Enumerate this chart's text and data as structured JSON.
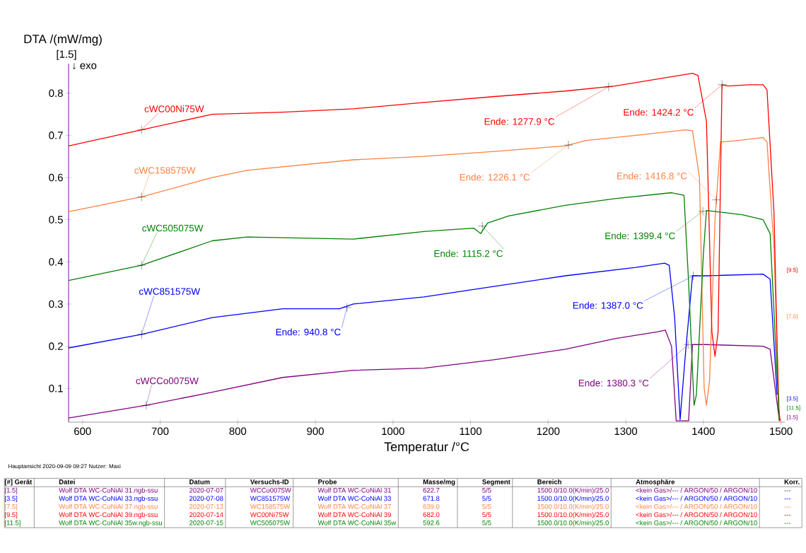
{
  "chart_data": {
    "type": "line",
    "xlabel": "Temperatur /°C",
    "ylabel": "DTA /(mW/mg)",
    "xlim": [
      582,
      1505
    ],
    "ylim": [
      0.02,
      0.87
    ],
    "xticks": [
      600,
      700,
      800,
      900,
      1000,
      1100,
      1200,
      1300,
      1400,
      1500
    ],
    "yticks": [
      0.1,
      0.2,
      0.3,
      0.4,
      0.5,
      0.6,
      0.7,
      0.8
    ],
    "series": [
      {
        "name": "cWCCo0075W",
        "color": "#800080",
        "x": [
          582,
          682,
          767,
          858,
          949,
          1040,
          1131,
          1222,
          1286,
          1340,
          1351,
          1359,
          1365,
          1381,
          1386,
          1404,
          1477,
          1486,
          1498
        ],
        "values": [
          0.03,
          0.06,
          0.091,
          0.126,
          0.143,
          0.148,
          0.168,
          0.193,
          0.218,
          0.234,
          0.238,
          0.2,
          0.023,
          0.023,
          0.204,
          0.204,
          0.2,
          0.193,
          0.023
        ]
      },
      {
        "name": "cWC851575W",
        "color": "#0000ff",
        "x": [
          582,
          676,
          767,
          858,
          931,
          949,
          1040,
          1131,
          1222,
          1313,
          1350,
          1356,
          1363,
          1370,
          1377,
          1386,
          1404,
          1477,
          1486,
          1495
        ],
        "values": [
          0.196,
          0.228,
          0.268,
          0.289,
          0.289,
          0.3,
          0.317,
          0.342,
          0.367,
          0.387,
          0.397,
          0.392,
          0.268,
          0.026,
          0.184,
          0.367,
          0.367,
          0.371,
          0.359,
          0.085
        ]
      },
      {
        "name": "cWC158575W",
        "color": "#ff8040",
        "x": [
          582,
          676,
          767,
          812,
          949,
          1040,
          1131,
          1222,
          1249,
          1313,
          1377,
          1386,
          1395,
          1401,
          1404,
          1408,
          1415,
          1422,
          1441,
          1477,
          1482,
          1491,
          1498
        ],
        "values": [
          0.519,
          0.554,
          0.6,
          0.617,
          0.642,
          0.65,
          0.662,
          0.675,
          0.688,
          0.7,
          0.713,
          0.711,
          0.6,
          0.101,
          0.06,
          0.118,
          0.5,
          0.684,
          0.687,
          0.695,
          0.684,
          0.434,
          0.023
        ]
      },
      {
        "name": "cWC00Ni75W",
        "color": "#ff0000",
        "x": [
          582,
          676,
          767,
          858,
          949,
          1040,
          1131,
          1222,
          1286,
          1386,
          1393,
          1404,
          1411,
          1415,
          1419,
          1424,
          1432,
          1459,
          1477,
          1482,
          1491,
          1497,
          1499
        ],
        "values": [
          0.675,
          0.713,
          0.75,
          0.755,
          0.763,
          0.778,
          0.792,
          0.805,
          0.817,
          0.847,
          0.842,
          0.733,
          0.234,
          0.176,
          0.234,
          0.82,
          0.817,
          0.82,
          0.82,
          0.808,
          0.517,
          0.05,
          0.023
        ]
      },
      {
        "name": "cWC505075W",
        "color": "#008000",
        "x": [
          582,
          676,
          767,
          812,
          949,
          1040,
          1104,
          1113,
          1122,
          1149,
          1222,
          1286,
          1359,
          1375,
          1381,
          1388,
          1391,
          1400,
          1404,
          1450,
          1477,
          1486,
          1498
        ],
        "values": [
          0.356,
          0.392,
          0.45,
          0.459,
          0.454,
          0.472,
          0.48,
          0.467,
          0.492,
          0.509,
          0.534,
          0.55,
          0.564,
          0.558,
          0.351,
          0.06,
          0.085,
          0.418,
          0.522,
          0.512,
          0.5,
          0.467,
          0.023
        ]
      }
    ],
    "annotations": [
      {
        "text": "Ende: 1277.9 °C",
        "x": 1277.9,
        "y": 0.815
      },
      {
        "text": "Ende: 1424.2 °C",
        "x": 1424.2,
        "y": 0.82
      },
      {
        "text": "Ende: 1226.1 °C",
        "x": 1226.1,
        "y": 0.677
      },
      {
        "text": "Ende: 1416.8 °C",
        "x": 1416.8,
        "y": 0.547
      },
      {
        "text": "Ende: 1115.2 °C",
        "x": 1115.2,
        "y": 0.485
      },
      {
        "text": "Ende: 1399.4 °C",
        "x": 1399.4,
        "y": 0.52
      },
      {
        "text": "Ende: 940.8 °C",
        "x": 940.8,
        "y": 0.292
      },
      {
        "text": "Ende: 1387.0 °C",
        "x": 1387.0,
        "y": 0.367
      },
      {
        "text": "Ende: 1380.3 °C",
        "x": 1380.3,
        "y": 0.204
      },
      "[1.5]",
      "↓ exo",
      "[9.5]",
      "[7.5]",
      "[3.5]",
      "[11.5]",
      "[1.5]",
      "Hauptansicht   2020-09-09 09:27   Nutzer: Maxi",
      "[#] Gerät",
      "Datei",
      "Datum",
      "Versuchs-ID",
      "Probe",
      "Masse/mg",
      "Segment",
      "Bereich",
      "Atmosphäre",
      "Korr.",
      "[1.5]",
      "Wolf DTA WC-CoNiAl 31.ngb-ssu",
      "2020-07-07",
      "WCCo0075W",
      "Wolf DTA WC-CoNiAl 31",
      "622.7",
      "5/5",
      "1500.0/10.0(K/min)/25.0",
      "<kein Gas>/--- / ARGON/50 / ARGON/10",
      "---",
      "[3.5]",
      "Wolf DTA WC-CoNiAl 33.ngb-ssu",
      "2020-07-08",
      "WC851575W",
      "Wolf DTA WC-CoNiAl 33",
      "671.8",
      "5/5",
      "1500.0/10.0(K/min)/25.0",
      "<kein Gas>/--- / ARGON/50 / ARGON/10",
      "---",
      "[7.5]",
      "Wolf DTA WC-CoNiAl 37.ngb-ssu",
      "2020-07-13",
      "WC158575W",
      "Wolf DTA WC-CoNiAl 37",
      "639.0",
      "5/5",
      "1500.0/10.0(K/min)/25.0",
      "<kein Gas>/--- / ARGON/50 / ARGON/10",
      "---",
      "[9.5]",
      "Wolf DTA WC-CoNiAl 39.ngb-ssu",
      "2020-07-14",
      "WC00Ni75W",
      "Wolf DTA WC-CoNiAl 39",
      "682.0",
      "5/5",
      "1500.0/10.0(K/min)/25.0",
      "<kein Gas>/--- / ARGON/50 / ARGON/10",
      "---",
      "[11.5]",
      "Wolf DTA WC-CoNiAl 35w.ngb-ssu",
      "2020-07-15",
      "WC505075W",
      "Wolf DTA WC-CoNiAl 35w",
      "592.6",
      "5/5",
      "1500.0/10.0(K/min)/25.0",
      "<kein Gas>/--- / ARGON/50 / ARGON/10",
      "---"
    ]
  }
}
